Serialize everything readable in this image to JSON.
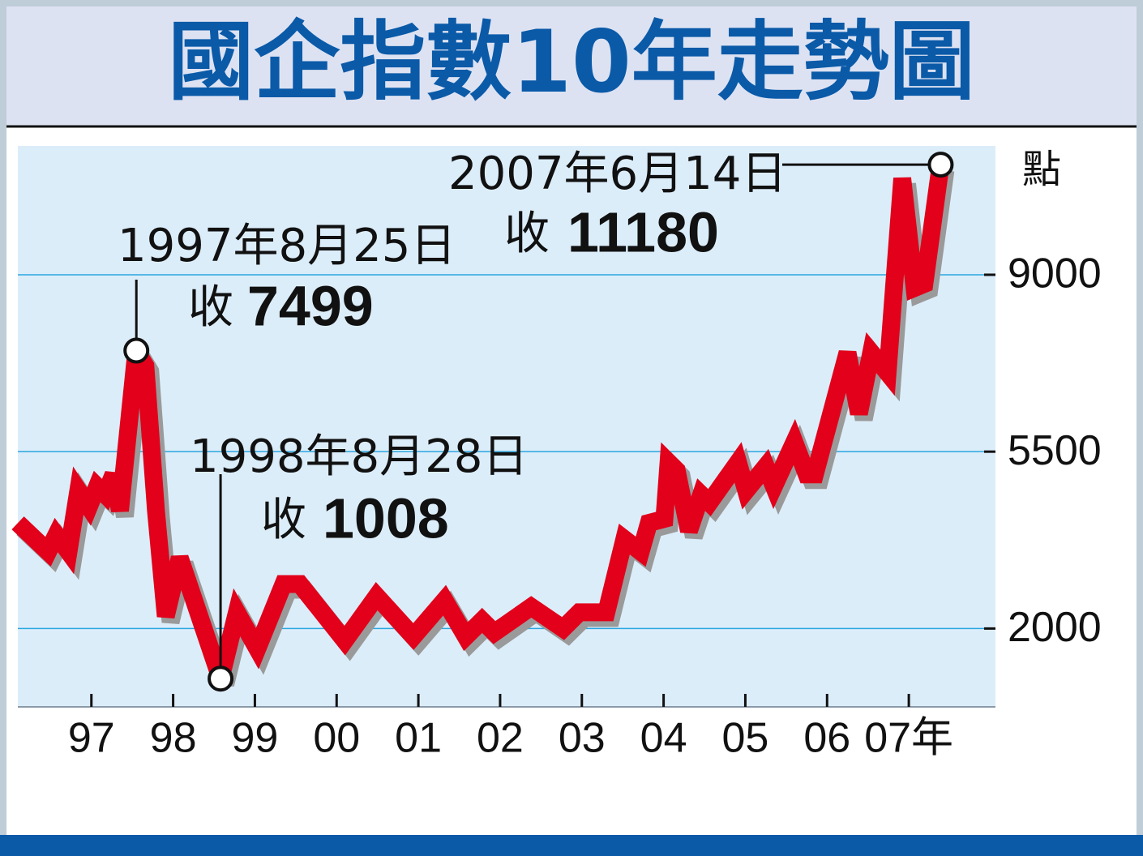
{
  "chart_data": {
    "type": "line",
    "title": "國企指數10年走勢圖",
    "y_label": "點",
    "x": [
      1996.1,
      1996.47,
      1996.57,
      1996.72,
      1996.84,
      1996.97,
      1997.07,
      1997.17,
      1997.27,
      1997.35,
      1997.55,
      1997.66,
      1997.79,
      1997.91,
      1998.08,
      1998.58,
      1998.78,
      1999.03,
      1999.35,
      1999.55,
      2000.1,
      2000.49,
      2000.94,
      2001.32,
      2001.58,
      2001.78,
      2001.93,
      2002.38,
      2002.77,
      2002.97,
      2003.3,
      2003.52,
      2003.72,
      2003.82,
      2004.01,
      2004.06,
      2004.16,
      2004.31,
      2004.46,
      2004.56,
      2004.91,
      2005.01,
      2005.25,
      2005.35,
      2005.6,
      2005.75,
      2005.85,
      2006.25,
      2006.39,
      2006.54,
      2006.74,
      2006.92,
      2007.07,
      2007.19,
      2007.39
    ],
    "series": [
      {
        "color": "#e2001a",
        "values": [
          4090,
          3520,
          3850,
          3520,
          4730,
          4410,
          4810,
          4650,
          5050,
          4330,
          7499,
          7200,
          4330,
          2240,
          3400,
          1008,
          2320,
          1600,
          2880,
          2880,
          1760,
          2640,
          1840,
          2560,
          1840,
          2160,
          1920,
          2430,
          2000,
          2320,
          2320,
          3770,
          3520,
          4090,
          4170,
          5290,
          5130,
          3930,
          4650,
          4490,
          5290,
          4730,
          5210,
          4810,
          5690,
          5050,
          5050,
          7460,
          6250,
          7460,
          7060,
          10910,
          8740,
          8820,
          11180
        ]
      }
    ],
    "xlim": [
      1996.1,
      2008.06
    ],
    "xticks": [
      {
        "value": 1997,
        "label": "97"
      },
      {
        "value": 1998,
        "label": "98"
      },
      {
        "value": 1999,
        "label": "99"
      },
      {
        "value": 2000,
        "label": "00"
      },
      {
        "value": 2001,
        "label": "01"
      },
      {
        "value": 2002,
        "label": "02"
      },
      {
        "value": 2003,
        "label": "03"
      },
      {
        "value": 2004,
        "label": "04"
      },
      {
        "value": 2005,
        "label": "05"
      },
      {
        "value": 2006,
        "label": "06"
      },
      {
        "value": 2007,
        "label": "07年"
      }
    ],
    "ylim": [
      450,
      11550
    ],
    "yticks": [
      2000,
      5500,
      9000
    ],
    "grid": true,
    "annotations": [
      {
        "text": "1997年8月25日",
        "prefix": "收",
        "point": 10
      },
      {
        "text": "1998年8月28日",
        "prefix": "收",
        "point": 15
      },
      {
        "text": "2007年6月14日",
        "prefix": "收",
        "point": 54
      }
    ]
  }
}
